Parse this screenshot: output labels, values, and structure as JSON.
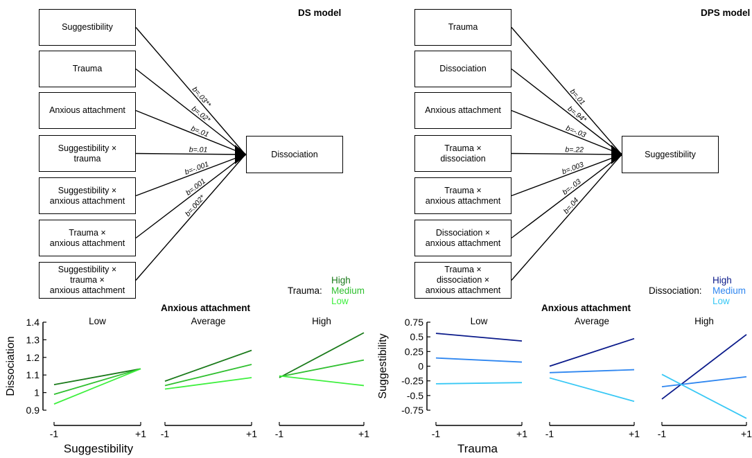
{
  "ds_model": {
    "title": "DS model",
    "predictors": [
      {
        "label": "Suggestibility",
        "coef": "b=.03**"
      },
      {
        "label": "Trauma",
        "coef": "b=.02*"
      },
      {
        "label": "Anxious attachment",
        "coef": "b=.01"
      },
      {
        "label": "Suggestibility ×\ntrauma",
        "coef": "b=.01"
      },
      {
        "label": "Suggestibility ×\nanxious attachment",
        "coef": "b=-.001"
      },
      {
        "label": "Trauma ×\nanxious attachment",
        "coef": "b=.001"
      },
      {
        "label": "Suggestibility ×\ntrauma ×\nanxious attachment",
        "coef": "b=.002*"
      }
    ],
    "outcome": "Dissociation"
  },
  "dps_model": {
    "title": "DPS model",
    "predictors": [
      {
        "label": "Trauma",
        "coef": "b=.01"
      },
      {
        "label": "Dissociation",
        "coef": "b=.94*"
      },
      {
        "label": "Anxious attachment",
        "coef": "b=-.03"
      },
      {
        "label": "Trauma ×\ndissociation",
        "coef": "b=.22"
      },
      {
        "label": "Trauma ×\nanxious attachment",
        "coef": "b=.003"
      },
      {
        "label": "Dissociation ×\nanxious attachment",
        "coef": "b=-.03"
      },
      {
        "label": "Trauma ×\ndissociation ×\nanxious attachment",
        "coef": "b=.04"
      }
    ],
    "outcome": "Suggestibility"
  },
  "left_legend": {
    "title": "Trauma:",
    "items": [
      "High",
      "Medium",
      "Low"
    ],
    "colors": [
      "#1a7a1a",
      "#2fbf2f",
      "#3ef03e"
    ]
  },
  "right_legend": {
    "title": "Dissociation:",
    "items": [
      "High",
      "Medium",
      "Low"
    ],
    "colors": [
      "#0a1a8a",
      "#2e86f0",
      "#38c8f5"
    ]
  },
  "chart_data": [
    {
      "type": "line",
      "title": "Anxious attachment",
      "panels": [
        "Low",
        "Average",
        "High"
      ],
      "xlabel": "Suggestibility",
      "ylabel": "Dissociation",
      "xticks": [
        "-1",
        "+1"
      ],
      "yticks": [
        "0.9",
        "1",
        "1.1",
        "1.2",
        "1.3",
        "1.4"
      ],
      "ylim": [
        0.9,
        1.4
      ],
      "x": [
        -1,
        1
      ],
      "series_names": [
        "High",
        "Medium",
        "Low"
      ],
      "panel_values": [
        [
          [
            1.045,
            1.135
          ],
          [
            0.99,
            1.135
          ],
          [
            0.935,
            1.135
          ]
        ],
        [
          [
            1.065,
            1.24
          ],
          [
            1.04,
            1.16
          ],
          [
            1.02,
            1.085
          ]
        ],
        [
          [
            1.085,
            1.34
          ],
          [
            1.09,
            1.185
          ],
          [
            1.095,
            1.04
          ]
        ]
      ]
    },
    {
      "type": "line",
      "title": "Anxious attachment",
      "panels": [
        "Low",
        "Average",
        "High"
      ],
      "xlabel": "Trauma",
      "ylabel": "Suggestibility",
      "xticks": [
        "-1",
        "+1"
      ],
      "yticks": [
        "0.75",
        "0.5",
        "0.25",
        "0",
        "-0.25",
        "-0.5",
        "-0.75"
      ],
      "ylim": [
        -0.75,
        0.75
      ],
      "x": [
        -1,
        1
      ],
      "series_names": [
        "High",
        "Medium",
        "Low"
      ],
      "panel_values": [
        [
          [
            0.56,
            0.43
          ],
          [
            0.14,
            0.07
          ],
          [
            -0.3,
            -0.28
          ]
        ],
        [
          [
            0.0,
            0.47
          ],
          [
            -0.11,
            -0.06
          ],
          [
            -0.2,
            -0.6
          ]
        ],
        [
          [
            -0.56,
            0.54
          ],
          [
            -0.35,
            -0.18
          ],
          [
            -0.14,
            -0.89
          ]
        ]
      ]
    }
  ]
}
